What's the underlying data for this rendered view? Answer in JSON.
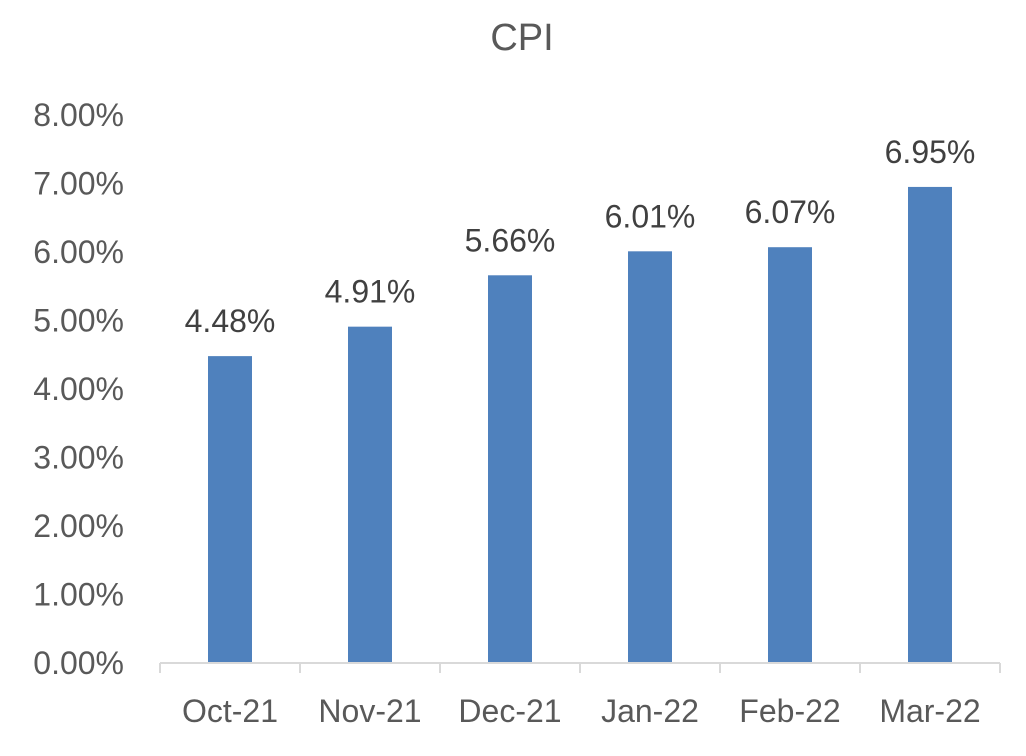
{
  "chart_data": {
    "type": "bar",
    "title": "CPI",
    "categories": [
      "Oct-21",
      "Nov-21",
      "Dec-21",
      "Jan-22",
      "Feb-22",
      "Mar-22"
    ],
    "values": [
      4.48,
      4.91,
      5.66,
      6.01,
      6.07,
      6.95
    ],
    "data_labels": [
      "4.48%",
      "4.91%",
      "5.66%",
      "6.01%",
      "6.07%",
      "6.95%"
    ],
    "yticks": [
      0,
      1,
      2,
      3,
      4,
      5,
      6,
      7,
      8
    ],
    "ytick_labels": [
      "0.00%",
      "1.00%",
      "2.00%",
      "3.00%",
      "4.00%",
      "5.00%",
      "6.00%",
      "7.00%",
      "8.00%"
    ],
    "ylim": [
      0,
      8
    ],
    "grid": false,
    "legend": "none",
    "bar_color": "#4f81bd",
    "axis_color": "#d9d9d9"
  }
}
